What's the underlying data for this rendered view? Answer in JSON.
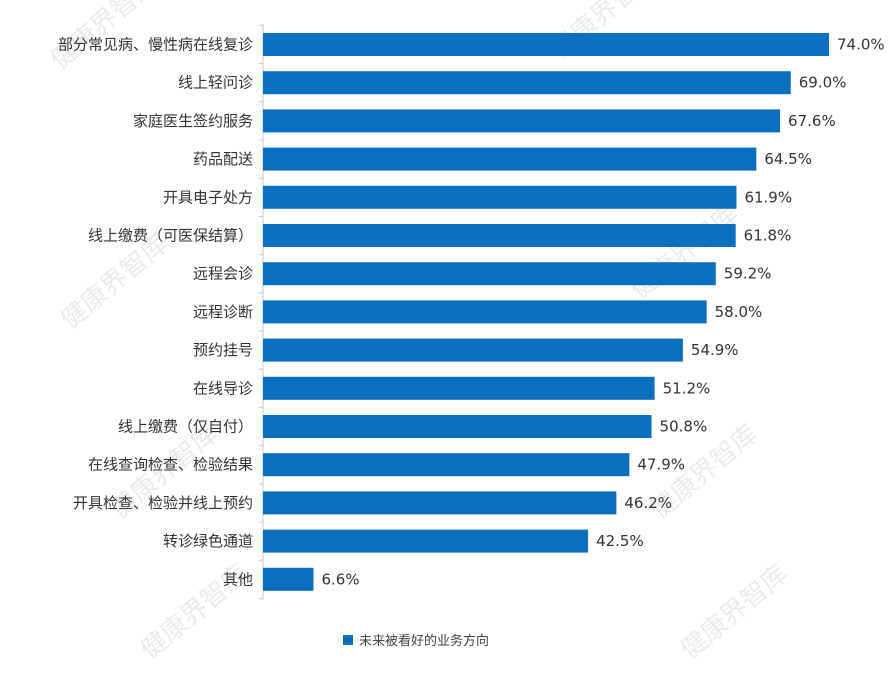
{
  "chart_data": {
    "type": "bar",
    "orientation": "horizontal",
    "categories": [
      "部分常见病、慢性病在线复诊",
      "线上轻问诊",
      "家庭医生签约服务",
      "药品配送",
      "开具电子处方",
      "线上缴费（可医保结算）",
      "远程会诊",
      "远程诊断",
      "预约挂号",
      "在线导诊",
      "线上缴费（仅自付）",
      "在线查询检查、检验结果",
      "开具检查、检验并线上预约",
      "转诊绿色通道",
      "其他"
    ],
    "series": [
      {
        "name": "未来被看好的业务方向",
        "values": [
          74.0,
          69.0,
          67.6,
          64.5,
          61.9,
          61.8,
          59.2,
          58.0,
          54.9,
          51.2,
          50.8,
          47.9,
          46.2,
          42.5,
          6.6
        ]
      }
    ],
    "value_labels": [
      "74.0%",
      "69.0%",
      "67.6%",
      "64.5%",
      "61.9%",
      "61.8%",
      "59.2%",
      "58.0%",
      "54.9%",
      "51.2%",
      "50.8%",
      "47.9%",
      "46.2%",
      "42.5%",
      "6.6%"
    ],
    "xlim": [
      0,
      80
    ],
    "grid": false,
    "legend_position": "bottom",
    "colors": {
      "bar": "#0b6fc0",
      "axis": "#c8c8c8",
      "text": "#333333"
    },
    "watermark": "健康界智库"
  }
}
